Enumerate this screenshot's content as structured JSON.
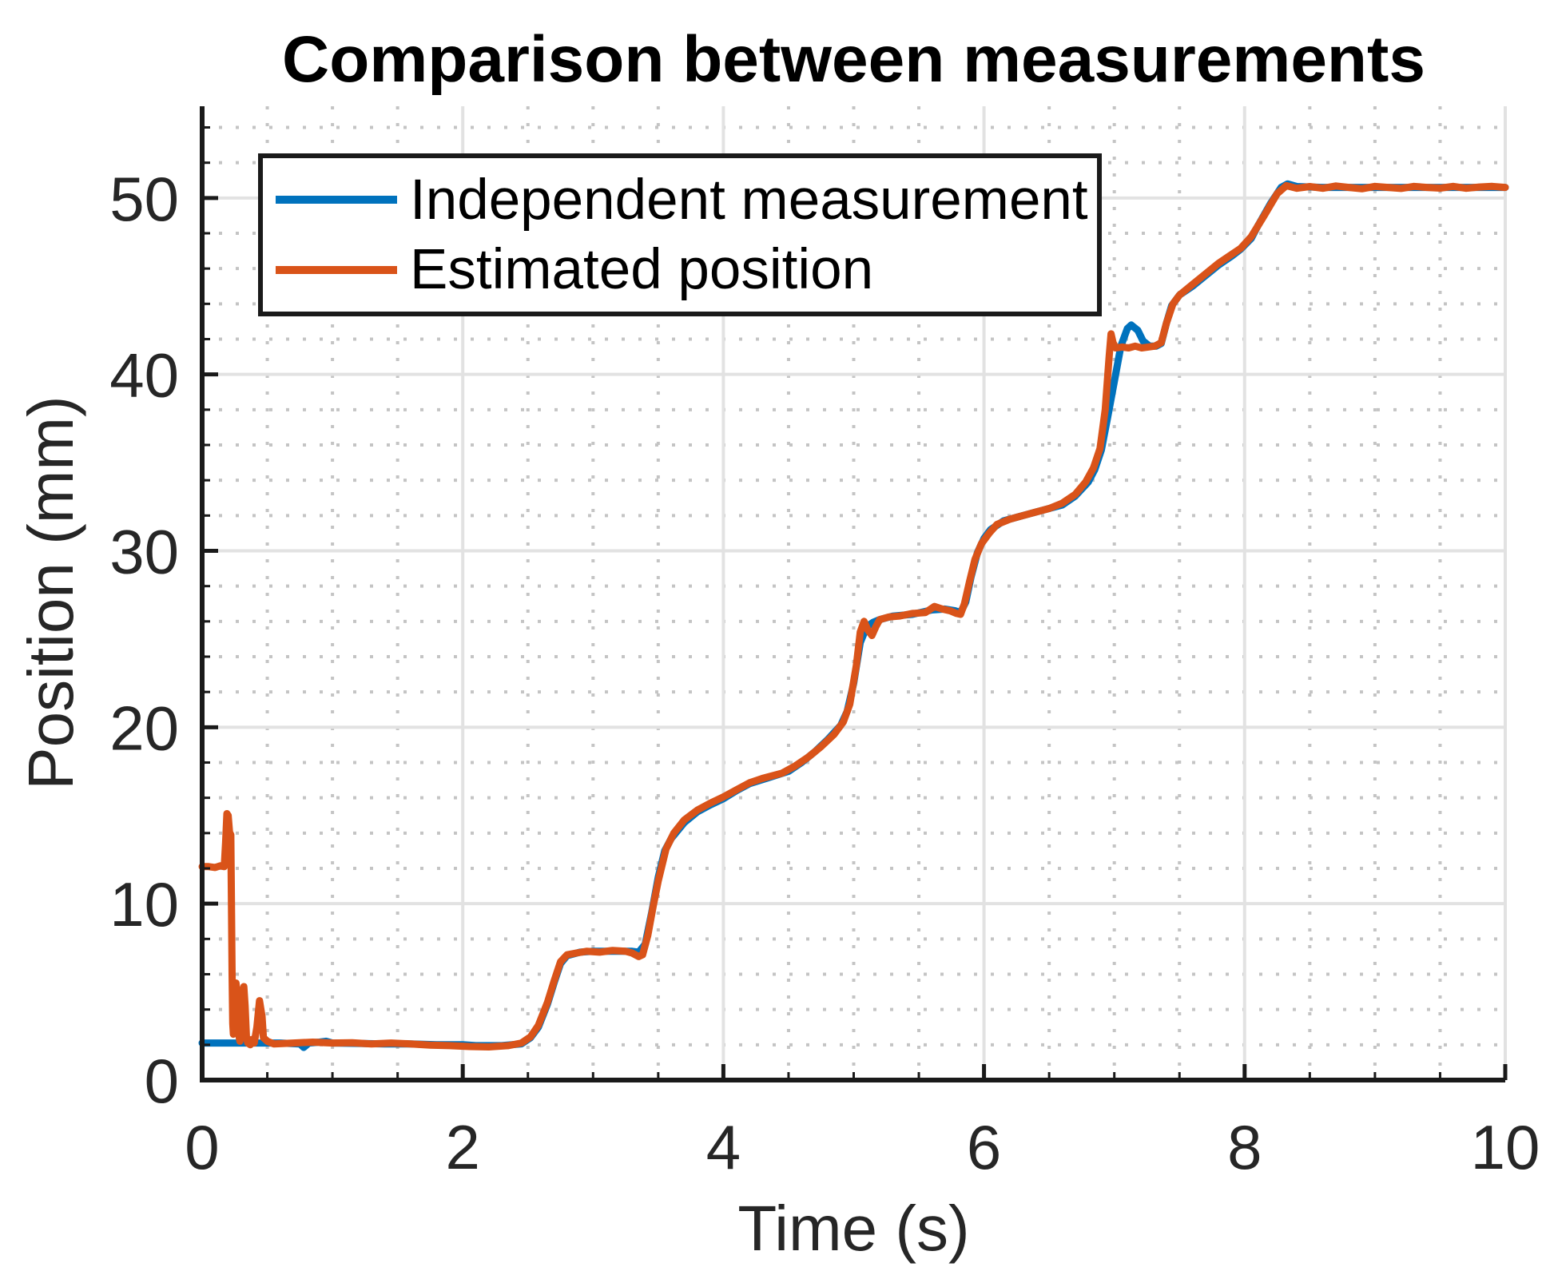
{
  "figure": {
    "background": "#ffffff"
  },
  "colors": {
    "series_blue": "#0072BD",
    "series_orange": "#D95319",
    "axis": "#1a1a1a",
    "tick_text": "#262626",
    "major_grid": "#e2e2e2",
    "minor_grid": "#c4c4c4"
  },
  "legend": {
    "items": [
      {
        "label": "Independent measurement",
        "color": "#0072BD"
      },
      {
        "label": "Estimated position",
        "color": "#D95319"
      }
    ]
  },
  "chart_data": {
    "type": "line",
    "title": "Comparison between measurements",
    "xlabel": "Time (s)",
    "ylabel": "Position (mm)",
    "xlim": [
      0,
      10
    ],
    "ylim": [
      0,
      55.2
    ],
    "xticks": [
      0,
      2,
      4,
      6,
      8,
      10
    ],
    "yticks": [
      0,
      10,
      20,
      30,
      40,
      50
    ],
    "minor_x_step": 0.5,
    "minor_y_step": 2,
    "grid": true,
    "minor_grid": true,
    "legend_position": "top-left",
    "series": [
      {
        "name": "Independent measurement",
        "color": "#0072BD",
        "points": [
          [
            0,
            2.1
          ],
          [
            0.3,
            2.1
          ],
          [
            0.6,
            2.1
          ],
          [
            0.75,
            2.05
          ],
          [
            0.78,
            1.85
          ],
          [
            0.82,
            2.1
          ],
          [
            0.9,
            2.15
          ],
          [
            0.95,
            2.2
          ],
          [
            1.0,
            2.1
          ],
          [
            1.2,
            2.08
          ],
          [
            1.4,
            2.05
          ],
          [
            1.6,
            2.05
          ],
          [
            1.8,
            2.0
          ],
          [
            2.0,
            2.0
          ],
          [
            2.1,
            1.95
          ],
          [
            2.3,
            1.95
          ],
          [
            2.45,
            2.05
          ],
          [
            2.52,
            2.4
          ],
          [
            2.58,
            3.0
          ],
          [
            2.65,
            4.3
          ],
          [
            2.7,
            5.5
          ],
          [
            2.75,
            6.6
          ],
          [
            2.8,
            7.05
          ],
          [
            2.9,
            7.25
          ],
          [
            3.0,
            7.3
          ],
          [
            3.15,
            7.3
          ],
          [
            3.3,
            7.3
          ],
          [
            3.35,
            7.25
          ],
          [
            3.4,
            7.7
          ],
          [
            3.45,
            9.5
          ],
          [
            3.5,
            11.5
          ],
          [
            3.55,
            13.0
          ],
          [
            3.6,
            13.7
          ],
          [
            3.7,
            14.6
          ],
          [
            3.8,
            15.2
          ],
          [
            3.9,
            15.6
          ],
          [
            4.0,
            15.95
          ],
          [
            4.1,
            16.4
          ],
          [
            4.2,
            16.8
          ],
          [
            4.35,
            17.15
          ],
          [
            4.5,
            17.5
          ],
          [
            4.6,
            18.0
          ],
          [
            4.7,
            18.6
          ],
          [
            4.8,
            19.3
          ],
          [
            4.9,
            20.1
          ],
          [
            4.95,
            20.9
          ],
          [
            5.0,
            22.5
          ],
          [
            5.05,
            24.8
          ],
          [
            5.1,
            25.7
          ],
          [
            5.15,
            25.95
          ],
          [
            5.2,
            26.1
          ],
          [
            5.3,
            26.3
          ],
          [
            5.45,
            26.4
          ],
          [
            5.6,
            26.65
          ],
          [
            5.7,
            26.7
          ],
          [
            5.78,
            26.6
          ],
          [
            5.82,
            26.5
          ],
          [
            5.86,
            27.1
          ],
          [
            5.9,
            28.5
          ],
          [
            5.95,
            29.9
          ],
          [
            6.0,
            30.7
          ],
          [
            6.05,
            31.2
          ],
          [
            6.15,
            31.7
          ],
          [
            6.3,
            32.0
          ],
          [
            6.45,
            32.3
          ],
          [
            6.6,
            32.6
          ],
          [
            6.7,
            33.1
          ],
          [
            6.8,
            33.9
          ],
          [
            6.85,
            34.6
          ],
          [
            6.9,
            35.7
          ],
          [
            6.95,
            37.6
          ],
          [
            7.0,
            39.6
          ],
          [
            7.05,
            41.6
          ],
          [
            7.1,
            42.6
          ],
          [
            7.13,
            42.8
          ],
          [
            7.18,
            42.5
          ],
          [
            7.22,
            41.9
          ],
          [
            7.27,
            41.6
          ],
          [
            7.32,
            41.6
          ],
          [
            7.36,
            41.75
          ],
          [
            7.4,
            42.9
          ],
          [
            7.44,
            43.9
          ],
          [
            7.5,
            44.5
          ],
          [
            7.6,
            45.0
          ],
          [
            7.7,
            45.6
          ],
          [
            7.8,
            46.2
          ],
          [
            7.9,
            46.7
          ],
          [
            7.97,
            47.1
          ],
          [
            8.05,
            47.7
          ],
          [
            8.1,
            48.4
          ],
          [
            8.2,
            49.7
          ],
          [
            8.28,
            50.6
          ],
          [
            8.33,
            50.8
          ],
          [
            8.4,
            50.65
          ],
          [
            8.6,
            50.6
          ],
          [
            8.8,
            50.6
          ],
          [
            9.0,
            50.6
          ],
          [
            9.3,
            50.6
          ],
          [
            9.6,
            50.6
          ],
          [
            10,
            50.6
          ]
        ]
      },
      {
        "name": "Estimated position",
        "color": "#D95319",
        "points": [
          [
            0,
            12.1
          ],
          [
            0.05,
            12.1
          ],
          [
            0.1,
            12.05
          ],
          [
            0.14,
            12.15
          ],
          [
            0.17,
            12.1
          ],
          [
            0.18,
            13.5
          ],
          [
            0.19,
            15.1
          ],
          [
            0.2,
            15.0
          ],
          [
            0.21,
            14.05
          ],
          [
            0.22,
            13.9
          ],
          [
            0.225,
            10.0
          ],
          [
            0.23,
            6.0
          ],
          [
            0.235,
            3.2
          ],
          [
            0.24,
            2.6
          ],
          [
            0.25,
            4.0
          ],
          [
            0.26,
            5.5
          ],
          [
            0.27,
            4.8
          ],
          [
            0.28,
            2.6
          ],
          [
            0.29,
            2.2
          ],
          [
            0.3,
            3.4
          ],
          [
            0.31,
            5.0
          ],
          [
            0.32,
            5.3
          ],
          [
            0.33,
            4.2
          ],
          [
            0.34,
            2.4
          ],
          [
            0.35,
            2.1
          ],
          [
            0.37,
            2.0
          ],
          [
            0.38,
            2.3
          ],
          [
            0.4,
            2.1
          ],
          [
            0.42,
            3.0
          ],
          [
            0.44,
            4.5
          ],
          [
            0.46,
            3.6
          ],
          [
            0.47,
            2.4
          ],
          [
            0.5,
            2.2
          ],
          [
            0.55,
            2.05
          ],
          [
            0.7,
            2.1
          ],
          [
            0.85,
            2.15
          ],
          [
            1.0,
            2.1
          ],
          [
            1.15,
            2.12
          ],
          [
            1.3,
            2.05
          ],
          [
            1.45,
            2.1
          ],
          [
            1.6,
            2.05
          ],
          [
            1.75,
            1.98
          ],
          [
            1.9,
            1.95
          ],
          [
            2.05,
            1.9
          ],
          [
            2.2,
            1.88
          ],
          [
            2.35,
            1.95
          ],
          [
            2.45,
            2.1
          ],
          [
            2.52,
            2.45
          ],
          [
            2.58,
            3.1
          ],
          [
            2.65,
            4.4
          ],
          [
            2.7,
            5.6
          ],
          [
            2.75,
            6.7
          ],
          [
            2.8,
            7.1
          ],
          [
            2.87,
            7.2
          ],
          [
            2.95,
            7.3
          ],
          [
            3.05,
            7.25
          ],
          [
            3.15,
            7.35
          ],
          [
            3.25,
            7.3
          ],
          [
            3.3,
            7.2
          ],
          [
            3.35,
            7.0
          ],
          [
            3.38,
            7.1
          ],
          [
            3.42,
            8.2
          ],
          [
            3.46,
            9.8
          ],
          [
            3.5,
            11.3
          ],
          [
            3.56,
            13.1
          ],
          [
            3.62,
            14.0
          ],
          [
            3.7,
            14.75
          ],
          [
            3.8,
            15.3
          ],
          [
            3.9,
            15.7
          ],
          [
            4.0,
            16.05
          ],
          [
            4.1,
            16.45
          ],
          [
            4.2,
            16.85
          ],
          [
            4.3,
            17.1
          ],
          [
            4.45,
            17.4
          ],
          [
            4.55,
            17.8
          ],
          [
            4.65,
            18.3
          ],
          [
            4.75,
            18.9
          ],
          [
            4.85,
            19.6
          ],
          [
            4.92,
            20.3
          ],
          [
            4.97,
            21.3
          ],
          [
            5.02,
            23.5
          ],
          [
            5.05,
            25.4
          ],
          [
            5.08,
            26.0
          ],
          [
            5.11,
            25.5
          ],
          [
            5.14,
            25.2
          ],
          [
            5.17,
            25.7
          ],
          [
            5.2,
            26.1
          ],
          [
            5.27,
            26.25
          ],
          [
            5.35,
            26.3
          ],
          [
            5.45,
            26.45
          ],
          [
            5.55,
            26.5
          ],
          [
            5.62,
            26.85
          ],
          [
            5.68,
            26.7
          ],
          [
            5.74,
            26.6
          ],
          [
            5.79,
            26.45
          ],
          [
            5.82,
            26.4
          ],
          [
            5.85,
            27.0
          ],
          [
            5.89,
            28.3
          ],
          [
            5.93,
            29.5
          ],
          [
            5.98,
            30.4
          ],
          [
            6.04,
            31.0
          ],
          [
            6.1,
            31.5
          ],
          [
            6.2,
            31.8
          ],
          [
            6.3,
            32.0
          ],
          [
            6.4,
            32.2
          ],
          [
            6.5,
            32.4
          ],
          [
            6.6,
            32.7
          ],
          [
            6.7,
            33.2
          ],
          [
            6.78,
            33.9
          ],
          [
            6.84,
            34.7
          ],
          [
            6.89,
            35.8
          ],
          [
            6.93,
            38.0
          ],
          [
            6.96,
            41.0
          ],
          [
            6.975,
            42.3
          ],
          [
            6.99,
            41.8
          ],
          [
            7.01,
            41.5
          ],
          [
            7.06,
            41.55
          ],
          [
            7.11,
            41.5
          ],
          [
            7.16,
            41.6
          ],
          [
            7.21,
            41.5
          ],
          [
            7.26,
            41.55
          ],
          [
            7.31,
            41.6
          ],
          [
            7.36,
            41.8
          ],
          [
            7.4,
            42.9
          ],
          [
            7.45,
            44.0
          ],
          [
            7.5,
            44.5
          ],
          [
            7.6,
            45.1
          ],
          [
            7.7,
            45.7
          ],
          [
            7.8,
            46.3
          ],
          [
            7.9,
            46.8
          ],
          [
            7.97,
            47.15
          ],
          [
            8.05,
            47.8
          ],
          [
            8.15,
            49.0
          ],
          [
            8.25,
            50.25
          ],
          [
            8.32,
            50.7
          ],
          [
            8.4,
            50.55
          ],
          [
            8.5,
            50.65
          ],
          [
            8.6,
            50.55
          ],
          [
            8.7,
            50.68
          ],
          [
            8.8,
            50.6
          ],
          [
            8.9,
            50.52
          ],
          [
            9.0,
            50.66
          ],
          [
            9.1,
            50.6
          ],
          [
            9.2,
            50.54
          ],
          [
            9.3,
            50.66
          ],
          [
            9.4,
            50.6
          ],
          [
            9.5,
            50.56
          ],
          [
            9.6,
            50.66
          ],
          [
            9.7,
            50.55
          ],
          [
            9.8,
            50.62
          ],
          [
            9.9,
            50.66
          ],
          [
            10,
            50.6
          ]
        ]
      }
    ]
  }
}
